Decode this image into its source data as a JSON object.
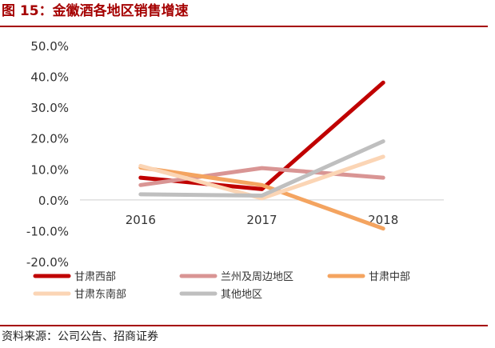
{
  "figure": {
    "title": "图 15：金徽酒各地区销售增速",
    "source": "资料来源：公司公告、招商证券"
  },
  "colors": {
    "title": "#a50000",
    "rule": "#a50000",
    "axis": "#d9d9d9",
    "tick_text": "#333333"
  },
  "chart_data": {
    "type": "line",
    "categories": [
      "2016",
      "2017",
      "2018"
    ],
    "ylim": [
      -20,
      50
    ],
    "ytick_values": [
      -20,
      -10,
      0,
      10,
      20,
      30,
      40,
      50
    ],
    "ytick_labels": [
      "-20.0%",
      "-10.0%",
      "0.0%",
      "10.0%",
      "20.0%",
      "30.0%",
      "40.0%",
      "50.0%"
    ],
    "grid": false,
    "legend_position": "bottom",
    "series": [
      {
        "name": "甘肃西部",
        "values": [
          7.2,
          3.5,
          38.0
        ],
        "color": "#c00000"
      },
      {
        "name": "兰州及周边地区",
        "values": [
          4.8,
          10.3,
          7.2
        ],
        "color": "#d99594"
      },
      {
        "name": "甘肃中部",
        "values": [
          10.5,
          4.8,
          -9.3
        ],
        "color": "#f4a460"
      },
      {
        "name": "甘肃东南部",
        "values": [
          11.0,
          0.5,
          14.0
        ],
        "color": "#fbd5b5"
      },
      {
        "name": "其他地区",
        "values": [
          1.8,
          1.4,
          19.0
        ],
        "color": "#bfbfbf"
      }
    ]
  }
}
